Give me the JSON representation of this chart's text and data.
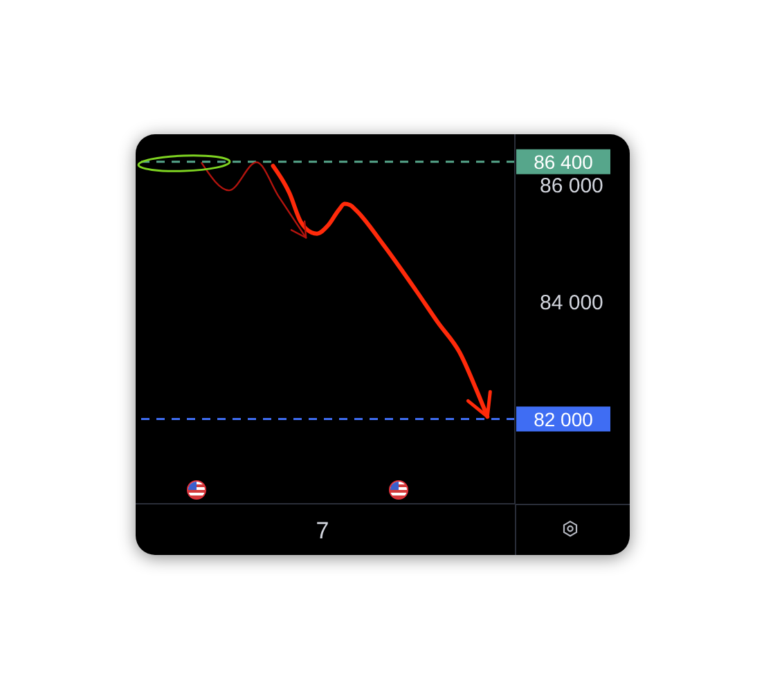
{
  "chart_data": {
    "type": "line",
    "categories": [
      null,
      null,
      null,
      null,
      null,
      null,
      null,
      null,
      null,
      null,
      null,
      null,
      null,
      null,
      null,
      null,
      null,
      null,
      null,
      null,
      null,
      null,
      null,
      null,
      null,
      null,
      null,
      null,
      null,
      null,
      null,
      null,
      null,
      null,
      "7",
      null,
      null,
      null,
      null,
      null,
      null,
      null,
      null,
      null,
      null,
      null,
      null,
      null,
      null,
      null,
      null,
      null,
      null,
      null,
      null,
      null,
      null,
      null,
      null,
      null,
      null,
      null,
      null,
      null,
      null,
      null,
      null,
      null,
      null,
      null
    ],
    "series": [
      {
        "color": "#ff2a0a",
        "values": [
          null,
          null,
          null,
          null,
          null,
          null,
          null,
          null,
          null,
          null,
          null,
          null,
          null,
          null,
          null,
          null,
          null,
          null,
          null,
          null,
          null,
          null,
          null,
          null,
          null,
          86330,
          null,
          null,
          85860,
          null,
          85380,
          null,
          85190,
          85170,
          null,
          85310,
          null,
          85580,
          85680,
          85660,
          85580,
          null,
          null,
          null,
          null,
          84990,
          null,
          null,
          null,
          null,
          null,
          84200,
          null,
          null,
          null,
          83650,
          null,
          null,
          null,
          83130,
          null,
          null,
          82500,
          null,
          82040,
          null,
          null,
          null,
          null,
          null
        ]
      },
      {
        "color": "#b3140e",
        "values": [
          null,
          null,
          null,
          null,
          null,
          null,
          null,
          null,
          null,
          null,
          null,
          null,
          86380,
          null,
          null,
          null,
          null,
          85910,
          null,
          null,
          null,
          null,
          86390,
          null,
          null,
          null,
          85810,
          null,
          null,
          null,
          null,
          85100,
          null,
          null,
          null,
          null,
          null,
          null,
          null,
          null,
          null,
          null,
          null,
          null,
          null,
          null,
          null,
          null,
          null,
          null,
          null,
          null,
          null,
          null,
          null,
          null,
          null,
          null,
          null,
          null,
          null,
          null,
          null,
          null,
          null,
          null,
          null,
          null,
          null,
          null
        ]
      }
    ],
    "ylim": [
      80550,
      86870
    ],
    "yticks": [
      {
        "value": 84000,
        "label": "84 000"
      },
      {
        "value": 86000,
        "label": "86 000"
      }
    ],
    "marker": "none",
    "ref_lines": [
      {
        "axis": "y",
        "value": 86400,
        "label": "86 400",
        "color": "#56a68b",
        "line_style": "dashed"
      },
      {
        "axis": "y",
        "value": 82000,
        "label": "82 000",
        "color": "#3f6df3",
        "line_style": "dashed"
      }
    ]
  }
}
